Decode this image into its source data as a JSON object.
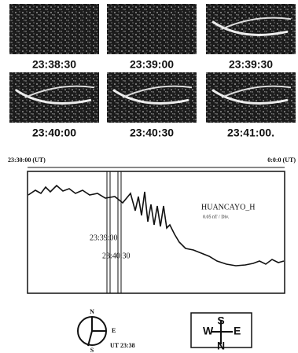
{
  "figure": {
    "frames": [
      {
        "time": "23:38:30"
      },
      {
        "time": "23:39:00"
      },
      {
        "time": "23:39:30"
      },
      {
        "time": "23:40:00"
      },
      {
        "time": "23:40:30"
      },
      {
        "time": "23:41:00."
      }
    ],
    "plot": {
      "start_label": "23:30:00 (UT)",
      "end_label": "0:0:0 (UT)",
      "station": "HUANCAYO_H",
      "scale": "0.05 nT / Div.",
      "markers": [
        "23:39:00",
        "23:40:30"
      ]
    },
    "compass": {
      "north": "N",
      "east": "E",
      "south": "S",
      "time": "UT 23:38"
    },
    "orientation": {
      "west": "W",
      "east": "E",
      "south": "S",
      "north": "N"
    }
  }
}
